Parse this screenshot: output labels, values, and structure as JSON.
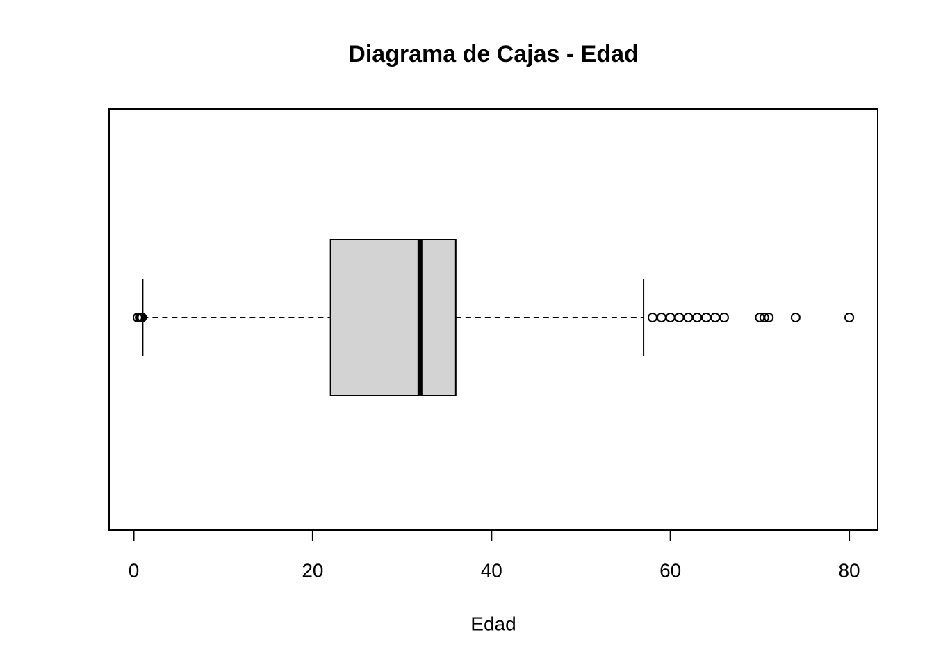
{
  "chart_data": {
    "type": "boxplot",
    "orientation": "horizontal",
    "title": "Diagrama de Cajas - Edad",
    "xlabel": "Edad",
    "boxes": [
      {
        "whisker_low": 1,
        "q1": 22,
        "median": 32,
        "q3": 36,
        "whisker_high": 57,
        "outliers": [
          0.42,
          0.67,
          0.75,
          0.83,
          0.92,
          58,
          59,
          60,
          61,
          62,
          63,
          64,
          65,
          66,
          70,
          70.5,
          71,
          74,
          80
        ]
      }
    ],
    "color": "#d3d3d3",
    "xlim": [
      -2.76,
      83.18
    ],
    "xticks": [
      0,
      20,
      40,
      60,
      80
    ]
  }
}
